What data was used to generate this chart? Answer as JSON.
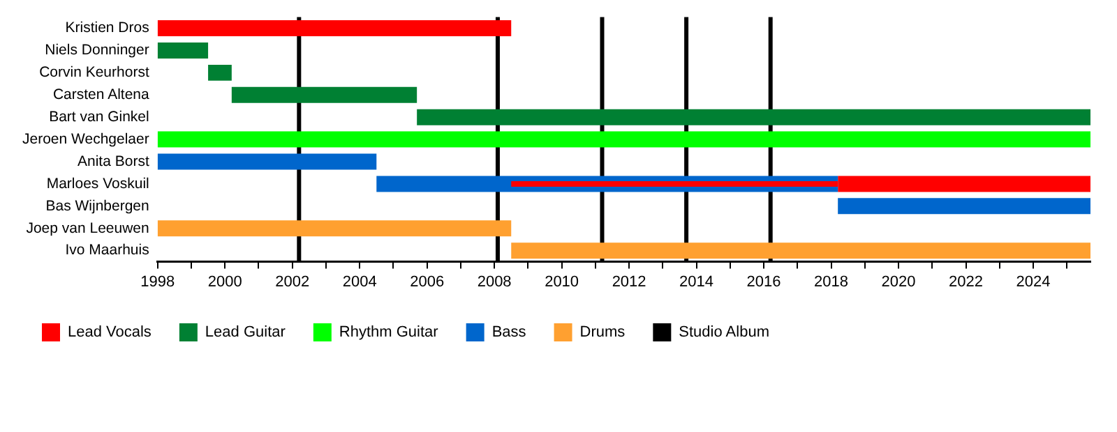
{
  "chart_data": {
    "type": "bar",
    "orientation": "horizontal",
    "categories": [
      "Kristien Dros",
      "Niels Donninger",
      "Corvin Keurhorst",
      "Carsten Altena",
      "Bart van Ginkel",
      "Jeroen Wechgelaer",
      "Anita Borst",
      "Marloes Voskuil",
      "Bas Wijnbergen",
      "Joep van Leeuwen",
      "Ivo Maarhuis"
    ],
    "series": [
      {
        "name": "Lead Vocals",
        "color": "#ff0000",
        "base": [
          1998,
          null,
          null,
          null,
          null,
          null,
          null,
          2018.2,
          null,
          null,
          null
        ],
        "values": [
          10.5,
          null,
          null,
          null,
          null,
          null,
          null,
          7.5,
          null,
          null,
          null
        ]
      },
      {
        "name": "Lead Guitar",
        "color": "#008033",
        "base": [
          null,
          1998,
          1999.5,
          2000.2,
          2005.7,
          null,
          null,
          null,
          null,
          null,
          null
        ],
        "values": [
          null,
          1.5,
          0.7,
          5.5,
          20,
          null,
          null,
          null,
          null,
          null,
          null
        ]
      },
      {
        "name": "Rhythm Guitar",
        "color": "#00ff00",
        "base": [
          null,
          null,
          null,
          null,
          null,
          1998,
          null,
          null,
          null,
          null,
          null
        ],
        "values": [
          null,
          null,
          null,
          null,
          null,
          27.7,
          null,
          null,
          null,
          null,
          null
        ]
      },
      {
        "name": "Bass",
        "color": "#0066cc",
        "base": [
          null,
          null,
          null,
          null,
          null,
          null,
          1998,
          2004.5,
          2018.2,
          null,
          null
        ],
        "values": [
          null,
          null,
          null,
          null,
          null,
          null,
          6.5,
          13.7,
          7.5,
          null,
          null
        ]
      },
      {
        "name": "Drums",
        "color": "#ffa030",
        "base": [
          null,
          null,
          null,
          null,
          null,
          null,
          null,
          null,
          null,
          1998,
          2008.5
        ],
        "values": [
          null,
          null,
          null,
          null,
          null,
          null,
          null,
          null,
          null,
          10.5,
          17.2
        ]
      },
      {
        "color": "#ff0000",
        "base": [
          null,
          null,
          null,
          null,
          null,
          null,
          null,
          2008.5,
          null,
          null,
          null
        ],
        "values": [
          null,
          null,
          null,
          null,
          null,
          null,
          null,
          9.7,
          null,
          null,
          null
        ]
      }
    ],
    "ref_lines": [
      {
        "axis": "x",
        "value": 2002.2,
        "label": "Studio Album",
        "color": "#000000"
      },
      {
        "axis": "x",
        "value": 2008.1,
        "label": null,
        "color": "#000000"
      },
      {
        "axis": "x",
        "value": 2011.2,
        "label": null,
        "color": "#000000"
      },
      {
        "axis": "x",
        "value": 2013.7,
        "label": null,
        "color": "#000000"
      },
      {
        "axis": "x",
        "value": 2016.2,
        "label": null,
        "color": "#000000"
      }
    ],
    "xlim": [
      1998,
      2025.7
    ],
    "xticks": [
      1998,
      {
        "value": 1999,
        "label": null
      },
      2000,
      {
        "value": 2001,
        "label": null
      },
      2002,
      {
        "value": 2003,
        "label": null
      },
      2004,
      {
        "value": 2005,
        "label": null
      },
      2006,
      {
        "value": 2007,
        "label": null
      },
      2008,
      {
        "value": 2009,
        "label": null
      },
      2010,
      {
        "value": 2011,
        "label": null
      },
      2012,
      {
        "value": 2013,
        "label": null
      },
      2014,
      {
        "value": 2015,
        "label": null
      },
      2016,
      {
        "value": 2017,
        "label": null
      },
      2018,
      {
        "value": 2019,
        "label": null
      },
      2020,
      {
        "value": 2021,
        "label": null
      },
      2022,
      {
        "value": 2023,
        "label": null
      },
      2024,
      {
        "value": 2025,
        "label": null
      }
    ],
    "grid": false,
    "legend": "bottom"
  }
}
